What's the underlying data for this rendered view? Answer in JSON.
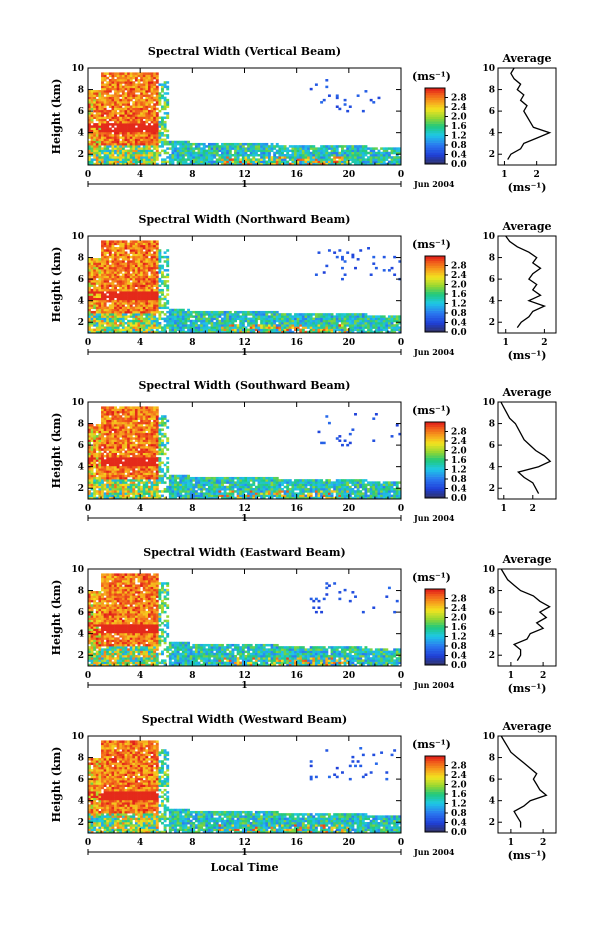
{
  "chart_data": [
    {
      "type": "heatmap",
      "title": "Spectral Width (Vertical Beam)",
      "ylabel": "Height (km)",
      "xlabel": "",
      "x_ticks": [
        "0",
        "4",
        "8",
        "12",
        "16",
        "20",
        "0"
      ],
      "y_ticks": [
        "2",
        "4",
        "6",
        "8",
        "10"
      ],
      "xlim": [
        0,
        24
      ],
      "ylim": [
        1,
        10
      ],
      "day_label": "1",
      "date_label": "Jun 2004",
      "colorbar": {
        "unit": "(ms⁻¹)",
        "ticks": [
          "0.0",
          "0.4",
          "0.8",
          "1.2",
          "1.6",
          "2.0",
          "2.4",
          "2.8"
        ],
        "range": [
          0,
          3.2
        ]
      },
      "average_profile": {
        "title": "Average",
        "xlabel": "(ms⁻¹)",
        "x_ticks": [
          "1",
          "2"
        ],
        "xlim": [
          0.8,
          2.6
        ],
        "heights": [
          1.5,
          2.0,
          2.5,
          3.0,
          3.5,
          4.0,
          4.5,
          5.0,
          5.5,
          6.0,
          6.5,
          7.0,
          7.5,
          8.0,
          8.5,
          9.0,
          9.5,
          10.0
        ],
        "values": [
          1.1,
          1.2,
          1.5,
          1.6,
          2.0,
          2.4,
          1.9,
          1.8,
          1.7,
          1.6,
          1.7,
          1.5,
          1.6,
          1.4,
          1.5,
          1.3,
          1.2,
          1.3
        ]
      }
    },
    {
      "type": "heatmap",
      "title": "Spectral Width (Northward Beam)",
      "ylabel": "Height (km)",
      "xlabel": "",
      "x_ticks": [
        "0",
        "4",
        "8",
        "12",
        "16",
        "20",
        "0"
      ],
      "y_ticks": [
        "2",
        "4",
        "6",
        "8",
        "10"
      ],
      "xlim": [
        0,
        24
      ],
      "ylim": [
        1,
        10
      ],
      "day_label": "1",
      "date_label": "Jun 2004",
      "colorbar": {
        "unit": "(ms⁻¹)",
        "ticks": [
          "0.0",
          "0.4",
          "0.8",
          "1.2",
          "1.6",
          "2.0",
          "2.4",
          "2.8"
        ],
        "range": [
          0,
          3.2
        ]
      },
      "average_profile": {
        "title": "Average",
        "xlabel": "(ms⁻¹)",
        "x_ticks": [
          "1",
          "2"
        ],
        "xlim": [
          0.8,
          2.3
        ],
        "heights": [
          1.5,
          2.0,
          2.5,
          3.0,
          3.5,
          4.0,
          4.5,
          5.0,
          5.5,
          6.0,
          6.5,
          7.0,
          7.5,
          8.0,
          8.5,
          9.0,
          9.5,
          10.0
        ],
        "values": [
          1.3,
          1.4,
          1.6,
          1.7,
          2.0,
          1.6,
          1.9,
          1.7,
          1.8,
          1.6,
          1.7,
          1.9,
          1.7,
          1.8,
          1.6,
          1.3,
          1.1,
          1.0
        ]
      }
    },
    {
      "type": "heatmap",
      "title": "Spectral Width (Southward Beam)",
      "ylabel": "Height (km)",
      "xlabel": "",
      "x_ticks": [
        "0",
        "4",
        "8",
        "12",
        "16",
        "20",
        "0"
      ],
      "y_ticks": [
        "2",
        "4",
        "6",
        "8",
        "10"
      ],
      "xlim": [
        0,
        24
      ],
      "ylim": [
        1,
        10
      ],
      "day_label": "1",
      "date_label": "Jun 2004",
      "colorbar": {
        "unit": "(ms⁻¹)",
        "ticks": [
          "0.0",
          "0.4",
          "0.8",
          "1.2",
          "1.6",
          "2.0",
          "2.4",
          "2.8"
        ],
        "range": [
          0,
          3.2
        ]
      },
      "average_profile": {
        "title": "Average",
        "xlabel": "",
        "x_ticks": [
          "1",
          "2"
        ],
        "xlim": [
          0.8,
          2.8
        ],
        "heights": [
          1.5,
          2.0,
          2.5,
          3.0,
          3.5,
          4.0,
          4.5,
          5.0,
          5.5,
          6.0,
          6.5,
          7.0,
          7.5,
          8.0,
          8.5,
          9.0,
          9.5,
          10.0
        ],
        "values": [
          2.2,
          2.1,
          2.0,
          1.7,
          1.5,
          2.2,
          2.6,
          2.4,
          2.1,
          1.9,
          1.7,
          1.6,
          1.5,
          1.4,
          1.2,
          1.1,
          1.0,
          0.9
        ]
      }
    },
    {
      "type": "heatmap",
      "title": "Spectral Width (Eastward Beam)",
      "ylabel": "Height (km)",
      "xlabel": "",
      "x_ticks": [
        "0",
        "4",
        "8",
        "12",
        "16",
        "20",
        "0"
      ],
      "y_ticks": [
        "2",
        "4",
        "6",
        "8",
        "10"
      ],
      "xlim": [
        0,
        24
      ],
      "ylim": [
        1,
        10
      ],
      "day_label": "1",
      "date_label": "Jun 2004",
      "colorbar": {
        "unit": "(ms⁻¹)",
        "ticks": [
          "0.0",
          "0.4",
          "0.8",
          "1.2",
          "1.6",
          "2.0",
          "2.4",
          "2.8"
        ],
        "range": [
          0,
          3.2
        ]
      },
      "average_profile": {
        "title": "Average",
        "xlabel": "(ms⁻¹)",
        "x_ticks": [
          "1",
          "2"
        ],
        "xlim": [
          0.6,
          2.4
        ],
        "heights": [
          1.5,
          2.0,
          2.5,
          3.0,
          3.5,
          4.0,
          4.5,
          5.0,
          5.5,
          6.0,
          6.5,
          7.0,
          7.5,
          8.0,
          8.5,
          9.0,
          9.5,
          10.0
        ],
        "values": [
          1.2,
          1.3,
          1.3,
          1.1,
          1.5,
          1.6,
          2.0,
          1.8,
          2.1,
          1.9,
          2.2,
          1.9,
          1.7,
          1.3,
          1.1,
          0.9,
          0.8,
          0.7
        ]
      }
    },
    {
      "type": "heatmap",
      "title": "Spectral Width (Westward Beam)",
      "ylabel": "Height (km)",
      "xlabel": "Local Time",
      "x_ticks": [
        "0",
        "4",
        "8",
        "12",
        "16",
        "20",
        "0"
      ],
      "y_ticks": [
        "2",
        "4",
        "6",
        "8",
        "10"
      ],
      "xlim": [
        0,
        24
      ],
      "ylim": [
        1,
        10
      ],
      "day_label": "1",
      "date_label": "Jun 2004",
      "colorbar": {
        "unit": "(ms⁻¹)",
        "ticks": [
          "0.0",
          "0.4",
          "0.8",
          "1.2",
          "1.6",
          "2.0",
          "2.4",
          "2.8"
        ],
        "range": [
          0,
          3.2
        ]
      },
      "average_profile": {
        "title": "Average",
        "xlabel": "(ms⁻¹)",
        "x_ticks": [
          "1",
          "2"
        ],
        "xlim": [
          0.6,
          2.4
        ],
        "heights": [
          1.5,
          2.0,
          2.5,
          3.0,
          3.5,
          4.0,
          4.5,
          5.0,
          5.5,
          6.0,
          6.5,
          7.0,
          7.5,
          8.0,
          8.5,
          9.0,
          9.5,
          10.0
        ],
        "values": [
          1.3,
          1.3,
          1.2,
          1.1,
          1.4,
          1.6,
          2.1,
          1.9,
          1.8,
          1.7,
          1.8,
          1.6,
          1.4,
          1.2,
          1.0,
          0.9,
          0.8,
          0.7
        ]
      }
    }
  ]
}
